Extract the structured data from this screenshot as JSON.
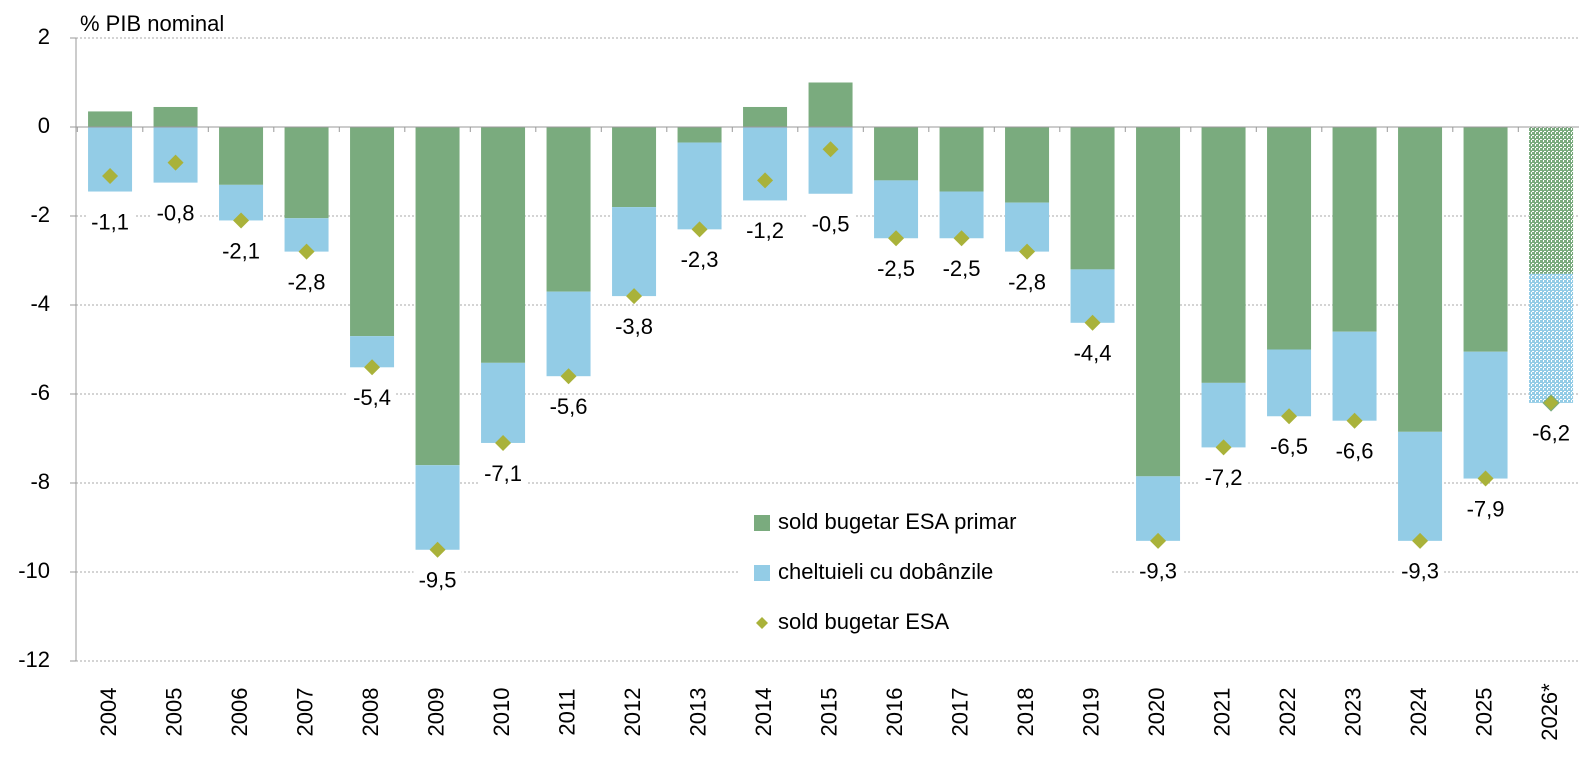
{
  "chart_data": {
    "type": "bar",
    "y_axis_label": "% PIB nominal",
    "categories": [
      "2004",
      "2005",
      "2006",
      "2007",
      "2008",
      "2009",
      "2010",
      "2011",
      "2012",
      "2013",
      "2014",
      "2015",
      "2016",
      "2017",
      "2018",
      "2019",
      "2020",
      "2021",
      "2022",
      "2023",
      "2024",
      "2025",
      "2026*"
    ],
    "series": [
      {
        "name": "sold bugetar ESA primar",
        "color": "#7aab7e",
        "stacked": true,
        "values": [
          0.35,
          0.45,
          -1.3,
          -2.05,
          -4.7,
          -7.6,
          -5.3,
          -3.7,
          -1.8,
          -0.35,
          0.45,
          1.0,
          -1.2,
          -1.45,
          -1.7,
          -3.2,
          -7.85,
          -5.75,
          -5.0,
          -4.6,
          -6.85,
          -5.05,
          -3.3
        ]
      },
      {
        "name": "cheltuieli cu dobânzile",
        "color": "#93cce6",
        "stacked": true,
        "values": [
          -1.45,
          -1.25,
          -0.8,
          -0.75,
          -0.7,
          -1.9,
          -1.8,
          -1.9,
          -2.0,
          -1.95,
          -1.65,
          -1.5,
          -1.3,
          -1.05,
          -1.1,
          -1.2,
          -1.45,
          -1.45,
          -1.5,
          -2.0,
          -2.45,
          -2.85,
          -2.9
        ]
      },
      {
        "name": "sold bugetar ESA",
        "color": "#a9b23a",
        "marker": "diamond",
        "values": [
          -1.1,
          -0.8,
          -2.1,
          -2.8,
          -5.4,
          -9.5,
          -7.1,
          -5.6,
          -3.8,
          -2.3,
          -1.2,
          -0.5,
          -2.5,
          -2.5,
          -2.8,
          -4.4,
          -9.3,
          -7.2,
          -6.5,
          -6.6,
          -9.3,
          -7.9,
          -6.2
        ],
        "value_labels": [
          "-1,1",
          "-0,8",
          "-2,1",
          "-2,8",
          "-5,4",
          "-9,5",
          "-7,1",
          "-5,6",
          "-3,8",
          "-2,3",
          "-1,2",
          "-0,5",
          "-2,5",
          "-2,5",
          "-2,8",
          "-4,4",
          "-9,3",
          "-7,2",
          "-6,5",
          "-6,6",
          "-9,3",
          "-7,9",
          "-6,2"
        ]
      }
    ],
    "ylim": [
      -12,
      2
    ],
    "yticks": [
      -12,
      -10,
      -8,
      -6,
      -4,
      -2,
      0,
      2
    ],
    "grid": true
  }
}
